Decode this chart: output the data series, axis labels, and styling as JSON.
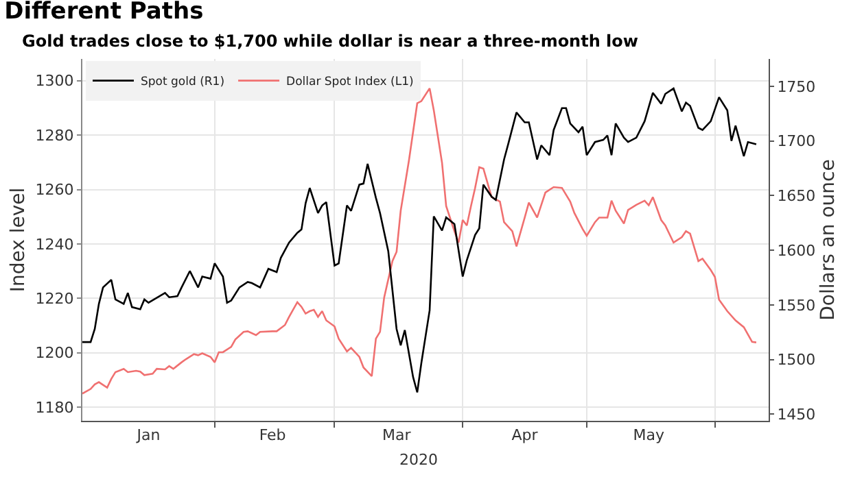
{
  "chart_data": {
    "type": "line",
    "title": "Different Paths",
    "subtitle": "Gold trades close to $1,700 while dollar is near a three-month low",
    "ylabel": "Index level",
    "y2label": "Dollars an ounce",
    "annotations": [
      "2020"
    ],
    "xlim": [
      "2019-12-31",
      "2020-06-14"
    ],
    "xticks": [
      {
        "value": "2020-01-16",
        "label": "Jan"
      },
      {
        "value": "2020-02-01",
        "label": null
      },
      {
        "value": "2020-02-15",
        "label": "Feb"
      },
      {
        "value": "2020-03-01",
        "label": null
      },
      {
        "value": "2020-03-16",
        "label": "Mar"
      },
      {
        "value": "2020-04-01",
        "label": null
      },
      {
        "value": "2020-04-16",
        "label": "Apr"
      },
      {
        "value": "2020-05-01",
        "label": null
      },
      {
        "value": "2020-05-16",
        "label": "May"
      },
      {
        "value": "2020-06-01",
        "label": null
      }
    ],
    "ylim": [
      1175,
      1308
    ],
    "yticks": [
      1180,
      1200,
      1220,
      1240,
      1260,
      1280,
      1300
    ],
    "y2lim": [
      1444,
      1775
    ],
    "y2ticks": [
      1450,
      1500,
      1550,
      1600,
      1650,
      1700,
      1750
    ],
    "grid": true,
    "legend": "top left",
    "line_style": "solid",
    "series": [
      {
        "name": "Spot gold (R1)",
        "color": "#000000",
        "axis": "y2",
        "x": [
          "2019-12-31",
          "2020-01-02",
          "2020-01-03",
          "2020-01-04",
          "2020-01-05",
          "2020-01-07",
          "2020-01-08",
          "2020-01-10",
          "2020-01-11",
          "2020-01-12",
          "2020-01-14",
          "2020-01-15",
          "2020-01-16",
          "2020-01-20",
          "2020-01-21",
          "2020-01-23",
          "2020-01-24",
          "2020-01-26",
          "2020-01-28",
          "2020-01-29",
          "2020-01-31",
          "2020-02-01",
          "2020-02-03",
          "2020-02-04",
          "2020-02-05",
          "2020-02-07",
          "2020-02-09",
          "2020-02-10",
          "2020-02-12",
          "2020-02-14",
          "2020-02-16",
          "2020-02-17",
          "2020-02-19",
          "2020-02-21",
          "2020-02-22",
          "2020-02-23",
          "2020-02-24",
          "2020-02-26",
          "2020-02-27",
          "2020-02-28",
          "2020-03-01",
          "2020-03-02",
          "2020-03-04",
          "2020-03-05",
          "2020-03-07",
          "2020-03-08",
          "2020-03-09",
          "2020-03-11",
          "2020-03-12",
          "2020-03-14",
          "2020-03-16",
          "2020-03-17",
          "2020-03-18",
          "2020-03-20",
          "2020-03-21",
          "2020-03-22",
          "2020-03-24",
          "2020-03-25",
          "2020-03-27",
          "2020-03-28",
          "2020-03-30",
          "2020-04-01",
          "2020-04-02",
          "2020-04-04",
          "2020-04-05",
          "2020-04-06",
          "2020-04-08",
          "2020-04-09",
          "2020-04-11",
          "2020-04-12",
          "2020-04-14",
          "2020-04-16",
          "2020-04-17",
          "2020-04-19",
          "2020-04-20",
          "2020-04-22",
          "2020-04-23",
          "2020-04-25",
          "2020-04-26",
          "2020-04-27",
          "2020-04-29",
          "2020-04-30",
          "2020-05-01",
          "2020-05-03",
          "2020-05-05",
          "2020-05-06",
          "2020-05-07",
          "2020-05-08",
          "2020-05-10",
          "2020-05-11",
          "2020-05-13",
          "2020-05-15",
          "2020-05-17",
          "2020-05-19",
          "2020-05-20",
          "2020-05-22",
          "2020-05-24",
          "2020-05-25",
          "2020-05-26",
          "2020-05-28",
          "2020-05-29",
          "2020-05-31",
          "2020-06-02",
          "2020-06-04",
          "2020-06-05",
          "2020-06-06",
          "2020-06-08",
          "2020-06-09",
          "2020-06-11"
        ],
        "values": [
          1516,
          1516,
          1528,
          1551,
          1566,
          1573,
          1555,
          1551,
          1561,
          1548,
          1546,
          1555,
          1552,
          1561,
          1557,
          1558,
          1566,
          1581,
          1566,
          1576,
          1574,
          1588,
          1576,
          1552,
          1554,
          1566,
          1571,
          1570,
          1566,
          1583,
          1580,
          1593,
          1607,
          1616,
          1619,
          1643,
          1657,
          1634,
          1641,
          1644,
          1586,
          1588,
          1641,
          1636,
          1660,
          1661,
          1679,
          1648,
          1634,
          1599,
          1528,
          1513,
          1527,
          1484,
          1470,
          1497,
          1545,
          1631,
          1618,
          1630,
          1624,
          1576,
          1591,
          1614,
          1620,
          1660,
          1649,
          1646,
          1683,
          1697,
          1726,
          1717,
          1717,
          1683,
          1696,
          1687,
          1710,
          1730,
          1730,
          1716,
          1708,
          1713,
          1687,
          1699,
          1701,
          1705,
          1687,
          1716,
          1703,
          1699,
          1703,
          1718,
          1744,
          1734,
          1743,
          1748,
          1727,
          1735,
          1732,
          1712,
          1710,
          1718,
          1740,
          1728,
          1700,
          1714,
          1686,
          1699,
          1697
        ]
      },
      {
        "name": "Dollar Spot Index (L1)",
        "color": "#f07070",
        "x": [
          "2019-12-31",
          "2020-01-02",
          "2020-01-03",
          "2020-01-04",
          "2020-01-06",
          "2020-01-07",
          "2020-01-08",
          "2020-01-10",
          "2020-01-11",
          "2020-01-13",
          "2020-01-14",
          "2020-01-15",
          "2020-01-17",
          "2020-01-18",
          "2020-01-20",
          "2020-01-21",
          "2020-01-22",
          "2020-01-24",
          "2020-01-25",
          "2020-01-27",
          "2020-01-28",
          "2020-01-29",
          "2020-01-31",
          "2020-02-01",
          "2020-02-02",
          "2020-02-03",
          "2020-02-05",
          "2020-02-06",
          "2020-02-08",
          "2020-02-09",
          "2020-02-11",
          "2020-02-12",
          "2020-02-15",
          "2020-02-16",
          "2020-02-18",
          "2020-02-19",
          "2020-02-21",
          "2020-02-22",
          "2020-02-23",
          "2020-02-24",
          "2020-02-25",
          "2020-02-26",
          "2020-02-27",
          "2020-02-28",
          "2020-03-01",
          "2020-03-02",
          "2020-03-04",
          "2020-03-05",
          "2020-03-07",
          "2020-03-08",
          "2020-03-10",
          "2020-03-11",
          "2020-03-12",
          "2020-03-13",
          "2020-03-15",
          "2020-03-16",
          "2020-03-17",
          "2020-03-19",
          "2020-03-21",
          "2020-03-22",
          "2020-03-24",
          "2020-03-25",
          "2020-03-27",
          "2020-03-28",
          "2020-03-30",
          "2020-03-31",
          "2020-04-01",
          "2020-04-02",
          "2020-04-03",
          "2020-04-04",
          "2020-04-05",
          "2020-04-06",
          "2020-04-08",
          "2020-04-10",
          "2020-04-11",
          "2020-04-13",
          "2020-04-14",
          "2020-04-16",
          "2020-04-17",
          "2020-04-19",
          "2020-04-21",
          "2020-04-23",
          "2020-04-25",
          "2020-04-27",
          "2020-04-28",
          "2020-04-30",
          "2020-05-01",
          "2020-05-03",
          "2020-05-04",
          "2020-05-06",
          "2020-05-07",
          "2020-05-08",
          "2020-05-10",
          "2020-05-11",
          "2020-05-13",
          "2020-05-15",
          "2020-05-16",
          "2020-05-17",
          "2020-05-19",
          "2020-05-20",
          "2020-05-22",
          "2020-05-24",
          "2020-05-25",
          "2020-05-26",
          "2020-05-28",
          "2020-05-29",
          "2020-05-31",
          "2020-06-01",
          "2020-06-02",
          "2020-06-04",
          "2020-06-06",
          "2020-06-08",
          "2020-06-10",
          "2020-06-11"
        ],
        "values": [
          1185.0,
          1186.7,
          1188.4,
          1189.2,
          1187.2,
          1190.4,
          1192.9,
          1194.1,
          1192.9,
          1193.4,
          1193.1,
          1191.8,
          1192.3,
          1194.1,
          1193.9,
          1195.1,
          1194.1,
          1196.5,
          1197.6,
          1199.5,
          1199.1,
          1199.8,
          1198.5,
          1196.5,
          1200.2,
          1200.2,
          1202.2,
          1204.9,
          1207.7,
          1207.9,
          1206.5,
          1207.7,
          1207.9,
          1207.9,
          1210.2,
          1213.2,
          1218.6,
          1216.9,
          1214.4,
          1215.3,
          1215.8,
          1213.2,
          1215.3,
          1211.9,
          1209.7,
          1205.2,
          1200.5,
          1201.8,
          1198.5,
          1194.6,
          1191.4,
          1205.2,
          1207.7,
          1220.3,
          1233.7,
          1237.1,
          1252.2,
          1270.7,
          1291.7,
          1292.5,
          1297.2,
          1289.2,
          1269.8,
          1253.9,
          1244.7,
          1240.5,
          1248.8,
          1246.8,
          1253.9,
          1260.6,
          1268.2,
          1267.7,
          1257.2,
          1255.6,
          1248.0,
          1244.7,
          1239.1,
          1249.7,
          1255.2,
          1249.7,
          1258.9,
          1260.9,
          1260.6,
          1255.6,
          1251.4,
          1245.5,
          1243.0,
          1248.0,
          1249.7,
          1249.7,
          1255.9,
          1252.2,
          1247.5,
          1252.5,
          1254.4,
          1255.9,
          1254.2,
          1257.2,
          1248.8,
          1246.8,
          1240.5,
          1242.5,
          1244.7,
          1243.8,
          1233.7,
          1234.6,
          1230.4,
          1227.9,
          1219.5,
          1215.3,
          1211.9,
          1209.4,
          1204.0,
          1203.8
        ]
      }
    ]
  }
}
